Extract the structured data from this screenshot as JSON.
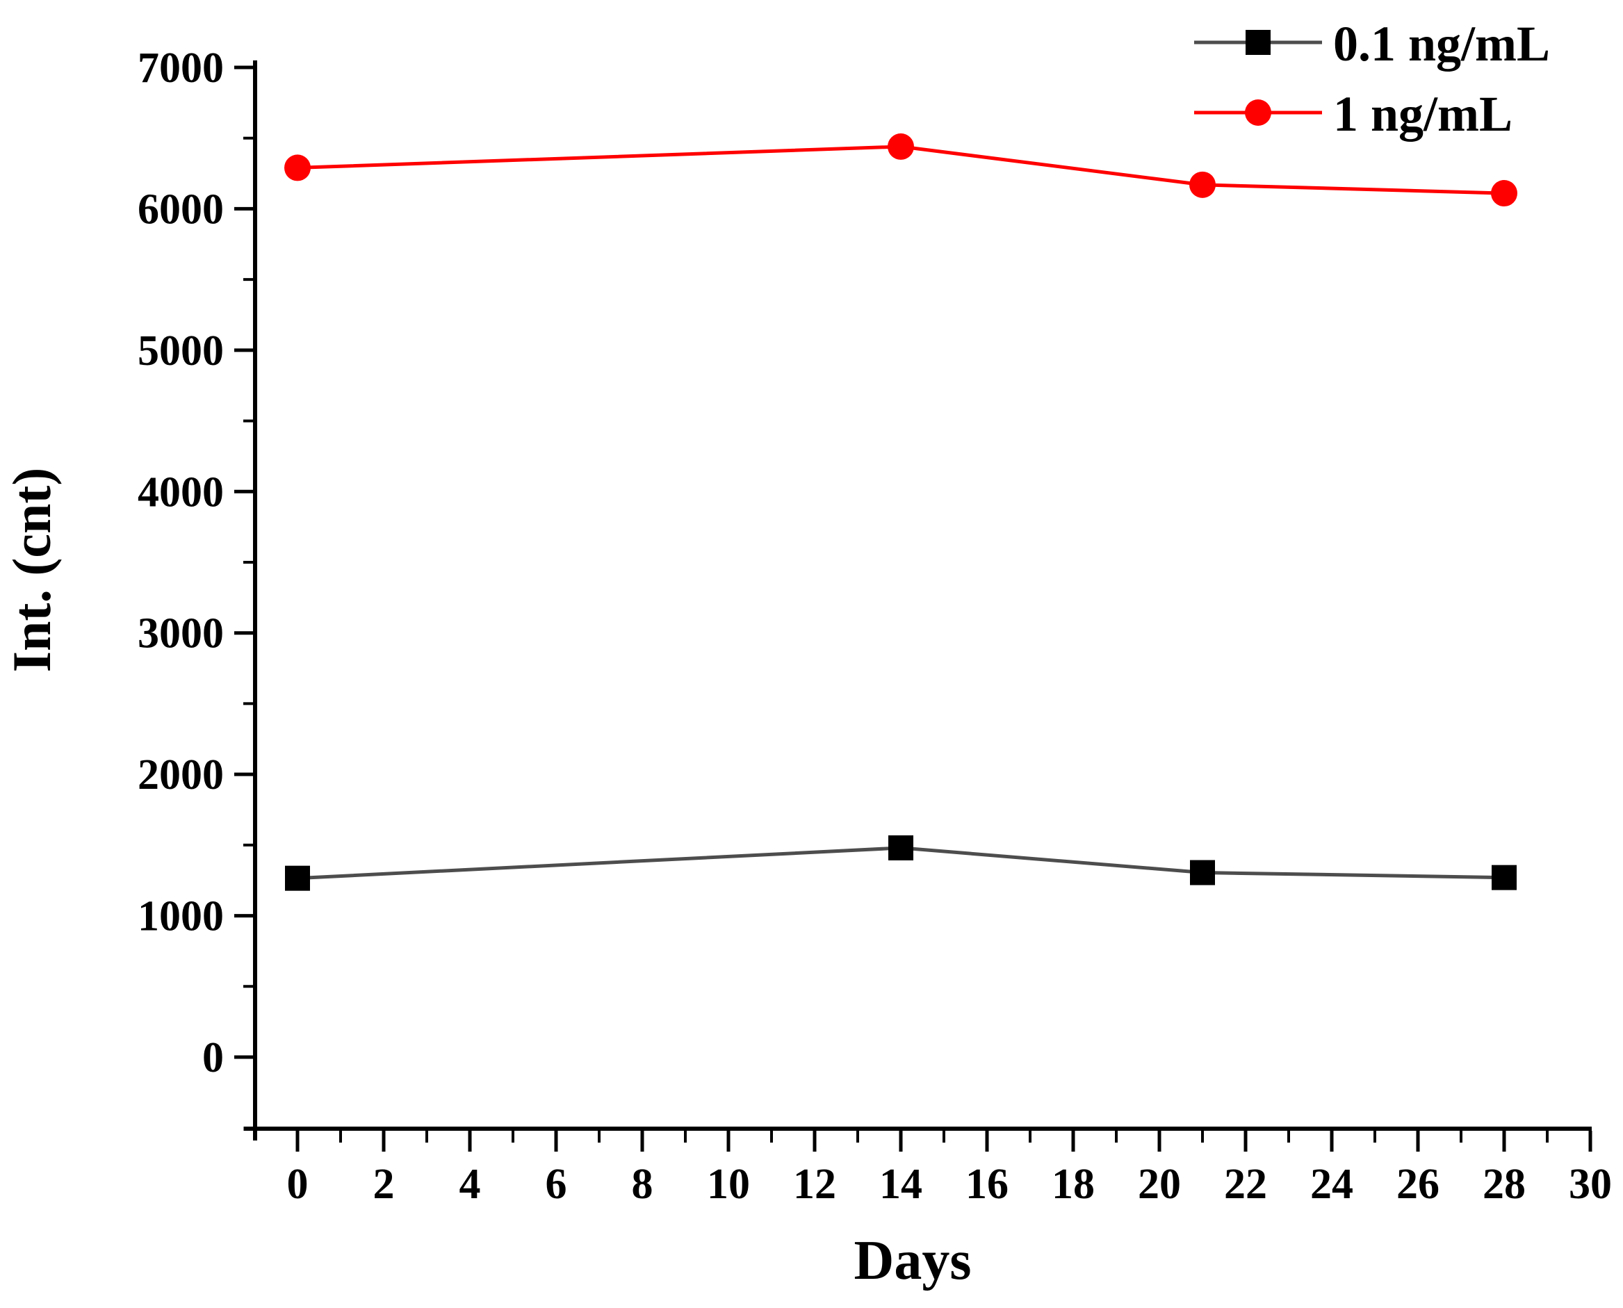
{
  "chart_data": {
    "type": "line",
    "title": "",
    "xlabel": "Days",
    "ylabel": "Int. (cnt)",
    "x": [
      0,
      14,
      21,
      28
    ],
    "series": [
      {
        "name": "0.1 ng/mL",
        "values": [
          1265,
          1480,
          1305,
          1270
        ],
        "line_color": "#4d4d4d",
        "marker": "square",
        "marker_color": "#000000"
      },
      {
        "name": "1 ng/mL",
        "values": [
          6290,
          6440,
          6170,
          6110
        ],
        "line_color": "#ff0000",
        "marker": "circle",
        "marker_color": "#ff0000"
      }
    ],
    "x_ticks": [
      0,
      2,
      4,
      6,
      8,
      10,
      12,
      14,
      16,
      18,
      20,
      22,
      24,
      26,
      28,
      30
    ],
    "x_minor_ticks": [
      1,
      3,
      5,
      7,
      9,
      11,
      13,
      15,
      17,
      19,
      21,
      23,
      25,
      27,
      29
    ],
    "y_ticks": [
      0,
      1000,
      2000,
      3000,
      4000,
      5000,
      6000,
      7000
    ],
    "y_minor_ticks": [
      500,
      1500,
      2500,
      3500,
      4500,
      5500,
      6500
    ],
    "xlim": [
      -1.25,
      30
    ],
    "ylim": [
      -590,
      7050
    ],
    "grid": false,
    "legend_position": "top-right",
    "axis_color": "#000000",
    "background_color": "#ffffff"
  }
}
